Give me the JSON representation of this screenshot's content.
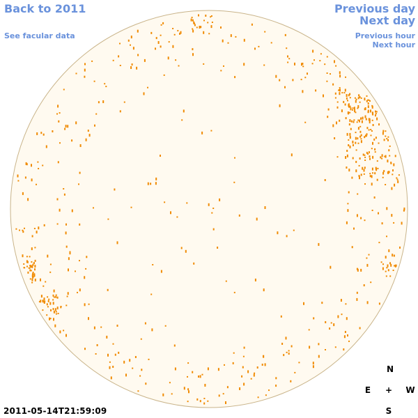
{
  "nav": {
    "back_label": "Back to 2011",
    "facular_label": "See facular data",
    "prev_day_label": "Previous day",
    "next_day_label": "Next day",
    "prev_hour_label": "Previous hour",
    "next_hour_label": "Next hour"
  },
  "compass": {
    "north": "N",
    "east": "E",
    "center": "+",
    "west": "W",
    "south": "S"
  },
  "timestamp": "2011-05-14T21:59:09",
  "colors": {
    "link": "#6a92dc",
    "disk_fill": "#fffaf0",
    "disk_edge": "#c9b48a",
    "feature": "#f08a00"
  }
}
